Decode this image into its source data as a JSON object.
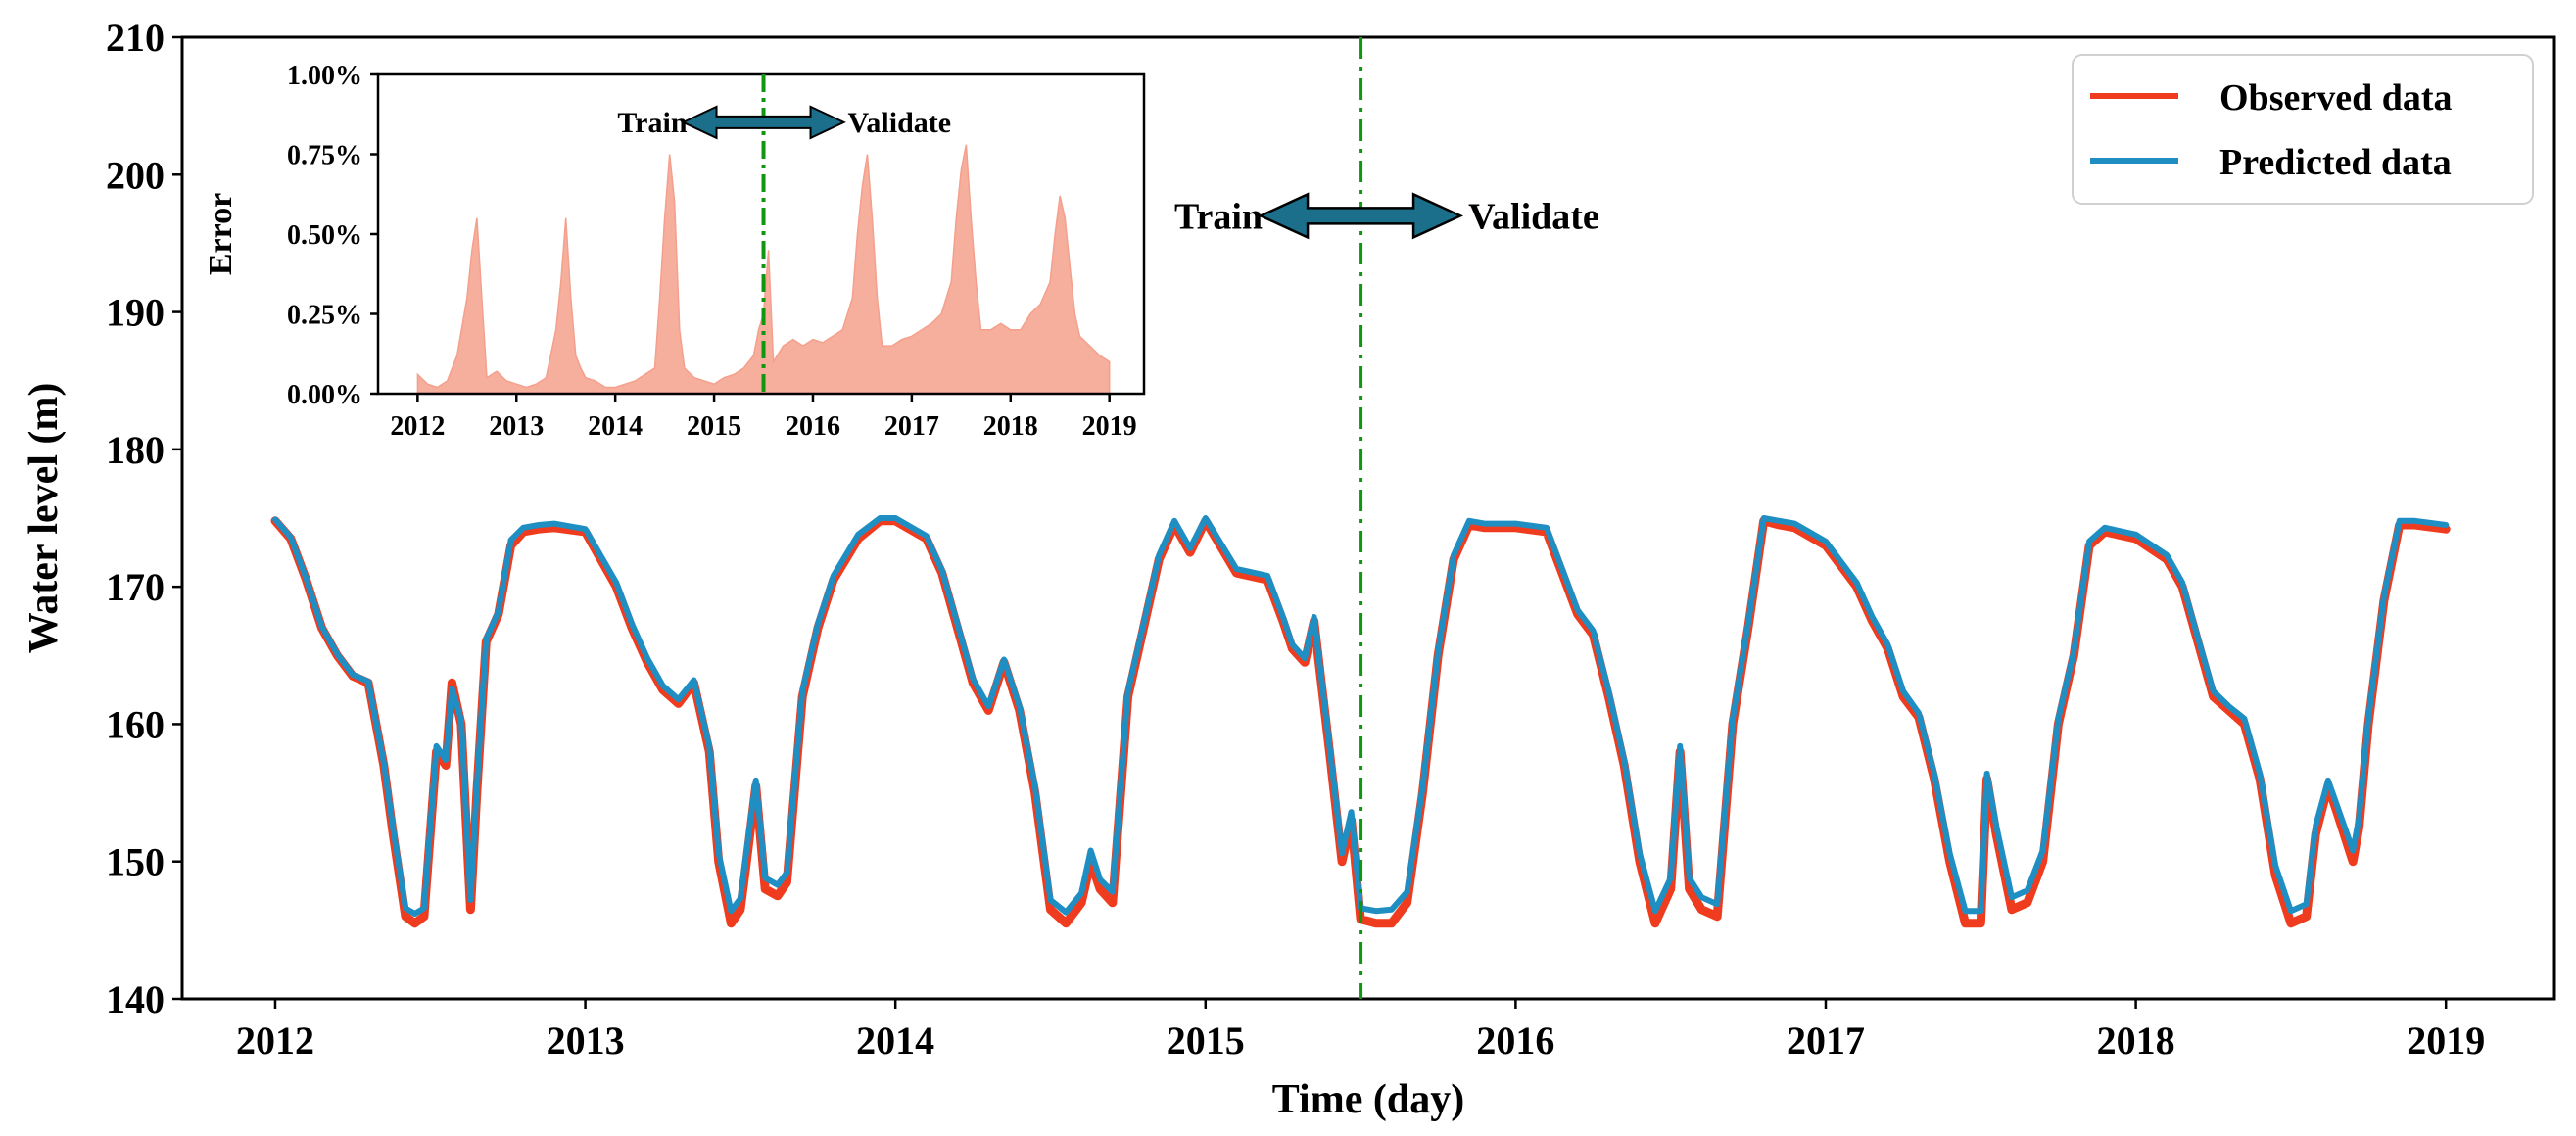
{
  "chart_data": [
    {
      "type": "line",
      "xlabel": "Time (day)",
      "ylabel": "Water level (m)",
      "xlim": [
        2011.7,
        2019.35
      ],
      "ylim": [
        140,
        210
      ],
      "xticks": [
        2012,
        2013,
        2014,
        2015,
        2016,
        2017,
        2018,
        2019
      ],
      "xtick_labels": [
        "2012",
        "2013",
        "2014",
        "2015",
        "2016",
        "2017",
        "2018",
        "2019"
      ],
      "yticks": [
        140,
        150,
        160,
        170,
        180,
        190,
        200,
        210
      ],
      "ytick_labels": [
        "140",
        "150",
        "160",
        "170",
        "180",
        "190",
        "200",
        "210"
      ],
      "grid": false,
      "legend_position": "top-right",
      "split_x": 2015.5,
      "annotation": {
        "left": "Train",
        "right": "Validate",
        "x": 2015.5,
        "y": 197
      },
      "series": [
        {
          "name": "Observed data",
          "color": "#f03c1e",
          "x": [
            2012.0,
            2012.05,
            2012.1,
            2012.15,
            2012.2,
            2012.25,
            2012.3,
            2012.35,
            2012.38,
            2012.42,
            2012.45,
            2012.48,
            2012.52,
            2012.55,
            2012.57,
            2012.6,
            2012.63,
            2012.65,
            2012.68,
            2012.72,
            2012.76,
            2012.8,
            2012.85,
            2012.9,
            2013.0,
            2013.1,
            2013.15,
            2013.2,
            2013.25,
            2013.3,
            2013.35,
            2013.4,
            2013.43,
            2013.47,
            2013.5,
            2013.52,
            2013.55,
            2013.58,
            2013.62,
            2013.65,
            2013.7,
            2013.75,
            2013.8,
            2013.88,
            2013.95,
            2014.0,
            2014.1,
            2014.15,
            2014.2,
            2014.25,
            2014.3,
            2014.35,
            2014.4,
            2014.45,
            2014.5,
            2014.55,
            2014.6,
            2014.63,
            2014.66,
            2014.7,
            2014.75,
            2014.8,
            2014.85,
            2014.9,
            2014.95,
            2015.0,
            2015.1,
            2015.2,
            2015.25,
            2015.28,
            2015.32,
            2015.35,
            2015.4,
            2015.44,
            2015.47,
            2015.5,
            2015.55,
            2015.6,
            2015.65,
            2015.7,
            2015.75,
            2015.8,
            2015.85,
            2015.9,
            2016.0,
            2016.1,
            2016.15,
            2016.2,
            2016.25,
            2016.3,
            2016.35,
            2016.4,
            2016.45,
            2016.5,
            2016.53,
            2016.56,
            2016.6,
            2016.65,
            2016.7,
            2016.75,
            2016.8,
            2016.85,
            2016.9,
            2017.0,
            2017.1,
            2017.15,
            2017.2,
            2017.25,
            2017.3,
            2017.35,
            2017.4,
            2017.45,
            2017.5,
            2017.52,
            2017.55,
            2017.6,
            2017.65,
            2017.7,
            2017.75,
            2017.8,
            2017.85,
            2017.9,
            2018.0,
            2018.1,
            2018.15,
            2018.2,
            2018.25,
            2018.3,
            2018.35,
            2018.4,
            2018.45,
            2018.5,
            2018.55,
            2018.58,
            2018.62,
            2018.65,
            2018.7,
            2018.72,
            2018.75,
            2018.8,
            2018.85,
            2018.9,
            2019.0
          ],
          "y": [
            174.8,
            173.5,
            170.5,
            167.0,
            165.0,
            163.5,
            163.0,
            157.0,
            152.0,
            146.0,
            145.5,
            146.0,
            158.0,
            157.0,
            163.0,
            160.0,
            146.5,
            155.0,
            166.0,
            168.0,
            173.0,
            174.0,
            174.2,
            174.3,
            174.0,
            170.0,
            167.0,
            164.5,
            162.5,
            161.5,
            163.0,
            158.0,
            150.0,
            145.5,
            146.5,
            150.0,
            155.5,
            148.0,
            147.5,
            148.5,
            162.0,
            167.0,
            170.5,
            173.5,
            174.8,
            174.8,
            173.5,
            171.0,
            167.0,
            163.0,
            161.0,
            164.5,
            161.0,
            155.0,
            146.5,
            145.5,
            147.0,
            150.0,
            148.0,
            147.0,
            162.0,
            167.0,
            172.0,
            174.5,
            172.5,
            174.8,
            171.0,
            170.5,
            167.5,
            165.5,
            164.5,
            167.5,
            158.0,
            150.0,
            153.0,
            145.8,
            145.5,
            145.5,
            147.0,
            155.0,
            165.0,
            172.0,
            174.5,
            174.3,
            174.3,
            174.0,
            171.0,
            168.0,
            166.5,
            162.0,
            157.0,
            150.0,
            145.5,
            148.0,
            158.0,
            148.0,
            146.5,
            146.0,
            160.0,
            167.0,
            174.8,
            174.5,
            174.3,
            173.0,
            170.0,
            167.5,
            165.5,
            162.0,
            160.5,
            156.0,
            150.0,
            145.5,
            145.5,
            156.0,
            152.0,
            146.5,
            147.0,
            150.0,
            160.0,
            165.0,
            173.0,
            174.0,
            173.5,
            172.0,
            170.0,
            166.0,
            162.0,
            161.0,
            160.0,
            156.0,
            149.0,
            145.5,
            146.0,
            152.0,
            155.5,
            153.5,
            150.0,
            152.5,
            160.0,
            169.0,
            174.5,
            174.5,
            174.2
          ]
        },
        {
          "name": "Predicted data",
          "color": "#1f8ec2",
          "x": [
            2012.0,
            2012.05,
            2012.1,
            2012.15,
            2012.2,
            2012.25,
            2012.3,
            2012.35,
            2012.38,
            2012.42,
            2012.45,
            2012.48,
            2012.52,
            2012.55,
            2012.57,
            2012.6,
            2012.63,
            2012.65,
            2012.68,
            2012.72,
            2012.76,
            2012.8,
            2012.85,
            2012.9,
            2013.0,
            2013.1,
            2013.15,
            2013.2,
            2013.25,
            2013.3,
            2013.35,
            2013.4,
            2013.43,
            2013.47,
            2013.5,
            2013.52,
            2013.55,
            2013.58,
            2013.62,
            2013.65,
            2013.7,
            2013.75,
            2013.8,
            2013.88,
            2013.95,
            2014.0,
            2014.1,
            2014.15,
            2014.2,
            2014.25,
            2014.3,
            2014.35,
            2014.4,
            2014.45,
            2014.5,
            2014.55,
            2014.6,
            2014.63,
            2014.66,
            2014.7,
            2014.75,
            2014.8,
            2014.85,
            2014.9,
            2014.95,
            2015.0,
            2015.1,
            2015.2,
            2015.25,
            2015.28,
            2015.32,
            2015.35,
            2015.4,
            2015.44,
            2015.47,
            2015.5,
            2015.55,
            2015.6,
            2015.65,
            2015.7,
            2015.75,
            2015.8,
            2015.85,
            2015.9,
            2016.0,
            2016.1,
            2016.15,
            2016.2,
            2016.25,
            2016.3,
            2016.35,
            2016.4,
            2016.45,
            2016.5,
            2016.53,
            2016.56,
            2016.6,
            2016.65,
            2016.7,
            2016.75,
            2016.8,
            2016.85,
            2016.9,
            2017.0,
            2017.1,
            2017.15,
            2017.2,
            2017.25,
            2017.3,
            2017.35,
            2017.4,
            2017.45,
            2017.5,
            2017.52,
            2017.55,
            2017.6,
            2017.65,
            2017.7,
            2017.75,
            2017.8,
            2017.85,
            2017.9,
            2018.0,
            2018.1,
            2018.15,
            2018.2,
            2018.25,
            2018.3,
            2018.35,
            2018.4,
            2018.45,
            2018.5,
            2018.55,
            2018.58,
            2018.62,
            2018.65,
            2018.7,
            2018.72,
            2018.75,
            2018.8,
            2018.85,
            2018.9,
            2019.0
          ],
          "y": [
            174.9,
            173.6,
            170.6,
            167.1,
            165.1,
            163.6,
            163.1,
            157.2,
            152.4,
            146.6,
            146.2,
            146.6,
            158.4,
            157.4,
            162.6,
            160.3,
            147.2,
            155.4,
            166.2,
            168.2,
            173.4,
            174.3,
            174.5,
            174.6,
            174.2,
            170.3,
            167.3,
            164.8,
            162.8,
            161.8,
            163.2,
            158.4,
            150.6,
            146.4,
            147.3,
            150.8,
            155.9,
            148.8,
            148.3,
            149.2,
            162.4,
            167.3,
            170.8,
            173.8,
            175.0,
            175.0,
            173.7,
            171.2,
            167.3,
            163.3,
            161.3,
            164.7,
            161.3,
            155.5,
            147.2,
            146.3,
            147.7,
            150.8,
            148.7,
            147.8,
            162.4,
            167.3,
            172.3,
            174.8,
            172.8,
            175.0,
            171.3,
            170.8,
            167.8,
            165.8,
            164.8,
            167.8,
            158.4,
            150.6,
            153.6,
            146.6,
            146.4,
            146.5,
            147.8,
            155.4,
            165.3,
            172.3,
            174.8,
            174.6,
            174.6,
            174.3,
            171.3,
            168.3,
            166.8,
            162.4,
            157.4,
            150.6,
            146.4,
            148.8,
            158.4,
            148.8,
            147.4,
            146.9,
            160.4,
            167.3,
            175.0,
            174.8,
            174.6,
            173.3,
            170.3,
            167.8,
            165.8,
            162.4,
            160.8,
            156.4,
            150.6,
            146.4,
            146.4,
            156.4,
            152.6,
            147.4,
            147.9,
            150.8,
            160.4,
            165.3,
            173.3,
            174.3,
            173.8,
            172.3,
            170.3,
            166.3,
            162.4,
            161.3,
            160.4,
            156.4,
            149.7,
            146.4,
            146.9,
            152.6,
            155.9,
            154.0,
            150.8,
            153.2,
            160.4,
            169.3,
            174.8,
            174.8,
            174.5
          ]
        }
      ]
    },
    {
      "type": "area",
      "ylabel": "Error",
      "xlim": [
        2011.6,
        2019.35
      ],
      "ylim": [
        0,
        1.0
      ],
      "xticks": [
        2012,
        2013,
        2014,
        2015,
        2016,
        2017,
        2018,
        2019
      ],
      "xtick_labels": [
        "2012",
        "2013",
        "2014",
        "2015",
        "2016",
        "2017",
        "2018",
        "2019"
      ],
      "yticks": [
        0,
        0.25,
        0.5,
        0.75,
        1.0
      ],
      "ytick_labels": [
        "0.00%",
        "0.25%",
        "0.50%",
        "0.75%",
        "1.00%"
      ],
      "split_x": 2015.5,
      "annotation": {
        "left": "Train",
        "right": "Validate",
        "x": 2015.5,
        "y": 0.85
      },
      "series": [
        {
          "name": "Error",
          "color": "#f4a08c",
          "x": [
            2012.0,
            2012.1,
            2012.2,
            2012.3,
            2012.4,
            2012.5,
            2012.55,
            2012.6,
            2012.65,
            2012.7,
            2012.8,
            2012.9,
            2013.0,
            2013.1,
            2013.2,
            2013.3,
            2013.4,
            2013.45,
            2013.5,
            2013.55,
            2013.6,
            2013.65,
            2013.7,
            2013.8,
            2013.9,
            2014.0,
            2014.1,
            2014.2,
            2014.3,
            2014.4,
            2014.45,
            2014.5,
            2014.55,
            2014.6,
            2014.65,
            2014.7,
            2014.8,
            2014.9,
            2015.0,
            2015.1,
            2015.2,
            2015.3,
            2015.4,
            2015.45,
            2015.5,
            2015.55,
            2015.6,
            2015.7,
            2015.8,
            2015.9,
            2016.0,
            2016.1,
            2016.2,
            2016.3,
            2016.4,
            2016.45,
            2016.5,
            2016.55,
            2016.6,
            2016.65,
            2016.7,
            2016.8,
            2016.9,
            2017.0,
            2017.1,
            2017.2,
            2017.3,
            2017.4,
            2017.45,
            2017.5,
            2017.55,
            2017.6,
            2017.65,
            2017.7,
            2017.8,
            2017.9,
            2018.0,
            2018.1,
            2018.2,
            2018.3,
            2018.4,
            2018.45,
            2018.5,
            2018.55,
            2018.6,
            2018.65,
            2018.7,
            2018.8,
            2018.9,
            2019.0
          ],
          "values": [
            0.06,
            0.03,
            0.02,
            0.04,
            0.12,
            0.3,
            0.45,
            0.55,
            0.3,
            0.05,
            0.07,
            0.04,
            0.03,
            0.02,
            0.03,
            0.05,
            0.2,
            0.35,
            0.55,
            0.3,
            0.12,
            0.08,
            0.05,
            0.04,
            0.02,
            0.02,
            0.03,
            0.04,
            0.06,
            0.08,
            0.3,
            0.55,
            0.75,
            0.6,
            0.2,
            0.08,
            0.05,
            0.04,
            0.03,
            0.05,
            0.06,
            0.08,
            0.12,
            0.2,
            0.25,
            0.45,
            0.1,
            0.15,
            0.17,
            0.15,
            0.17,
            0.16,
            0.18,
            0.2,
            0.3,
            0.5,
            0.65,
            0.75,
            0.55,
            0.3,
            0.15,
            0.15,
            0.17,
            0.18,
            0.2,
            0.22,
            0.25,
            0.35,
            0.55,
            0.7,
            0.78,
            0.55,
            0.35,
            0.2,
            0.2,
            0.22,
            0.2,
            0.2,
            0.25,
            0.28,
            0.35,
            0.5,
            0.62,
            0.55,
            0.4,
            0.25,
            0.18,
            0.15,
            0.12,
            0.1
          ]
        }
      ]
    }
  ]
}
